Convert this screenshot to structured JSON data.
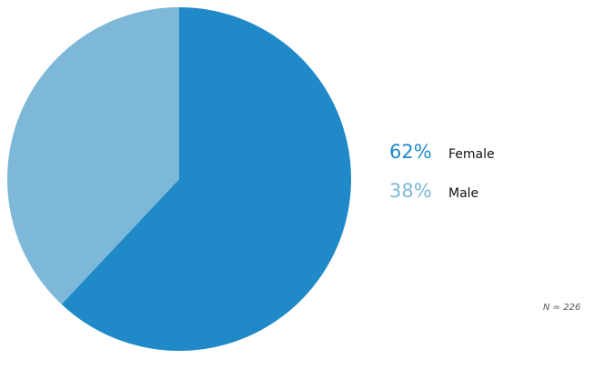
{
  "chart_data": {
    "type": "pie",
    "slices": [
      {
        "label": "Female",
        "value": 62,
        "display": "62%",
        "color": "#2089c8"
      },
      {
        "label": "Male",
        "value": 38,
        "display": "38%",
        "color": "#7db8d9"
      }
    ],
    "note": "N = 226"
  }
}
